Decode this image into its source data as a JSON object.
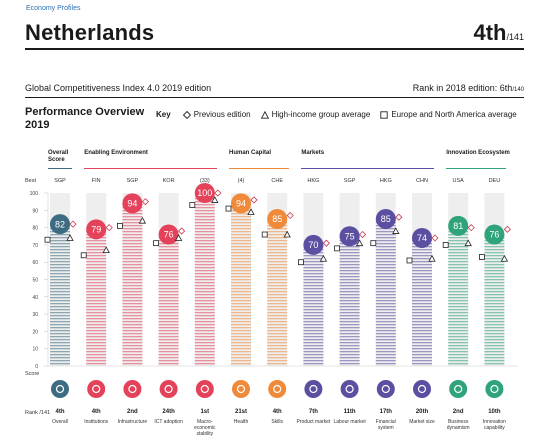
{
  "breadcrumb": "Economy Profiles",
  "country": "Netherlands",
  "rank": {
    "value": "4th",
    "total": "/141"
  },
  "subtitle": "Global Competitiveness Index 4.0 2019 edition",
  "prev_rank": {
    "label": "Rank in 2018 edition: 6th",
    "total": "/140"
  },
  "performance_title": "Performance Overview 2019",
  "key": {
    "label": "Key",
    "previous": "Previous edition",
    "high_income": "High-income group average",
    "europe": "Europe and North America average"
  },
  "side": {
    "best": "Best",
    "score": "Score",
    "rank": "Rank /141"
  },
  "groups": [
    {
      "name": "Overall Score",
      "color": "#3d6c82",
      "start": 0,
      "end": 0
    },
    {
      "name": "Enabling Environment",
      "color": "#e3425a",
      "start": 1,
      "end": 4
    },
    {
      "name": "Human Capital",
      "color": "#f08a3b",
      "start": 5,
      "end": 6
    },
    {
      "name": "Markets",
      "color": "#5a4fa0",
      "start": 7,
      "end": 10
    },
    {
      "name": "Innovation Ecosystem",
      "color": "#2fa47a",
      "start": 11,
      "end": 12
    }
  ],
  "chart_data": {
    "type": "bar",
    "ylim": [
      0,
      100
    ],
    "yticks": [
      0,
      10,
      20,
      30,
      40,
      50,
      60,
      70,
      80,
      90,
      100
    ],
    "categories": [
      "Overall",
      "Institutions",
      "Infrastructure",
      "ICT adoption",
      "Macro-economic stability",
      "Health",
      "Skills",
      "Product market",
      "Labour market",
      "Financial system",
      "Market size",
      "Business dynamism",
      "Innovation capability"
    ],
    "best": [
      "SGP",
      "FIN",
      "SGP",
      "KOR",
      "(33)",
      "(4)",
      "CHE",
      "HKG",
      "SGP",
      "HKG",
      "CHN",
      "USA",
      "DEU"
    ],
    "values": [
      82,
      79,
      94,
      76,
      100,
      94,
      85,
      70,
      75,
      85,
      74,
      81,
      76
    ],
    "previous": [
      82,
      80,
      95,
      78,
      100,
      96,
      87,
      71,
      76,
      86,
      74,
      80,
      79
    ],
    "high_income": [
      74,
      67,
      84,
      74,
      96,
      89,
      76,
      62,
      71,
      78,
      62,
      71,
      62
    ],
    "europe": [
      73,
      64,
      81,
      71,
      93,
      91,
      76,
      60,
      68,
      71,
      61,
      70,
      63
    ],
    "ranks": [
      "4th",
      "4th",
      "2nd",
      "24th",
      "1st",
      "21st",
      "4th",
      "7th",
      "11th",
      "17th",
      "20th",
      "2nd",
      "10th"
    ]
  }
}
